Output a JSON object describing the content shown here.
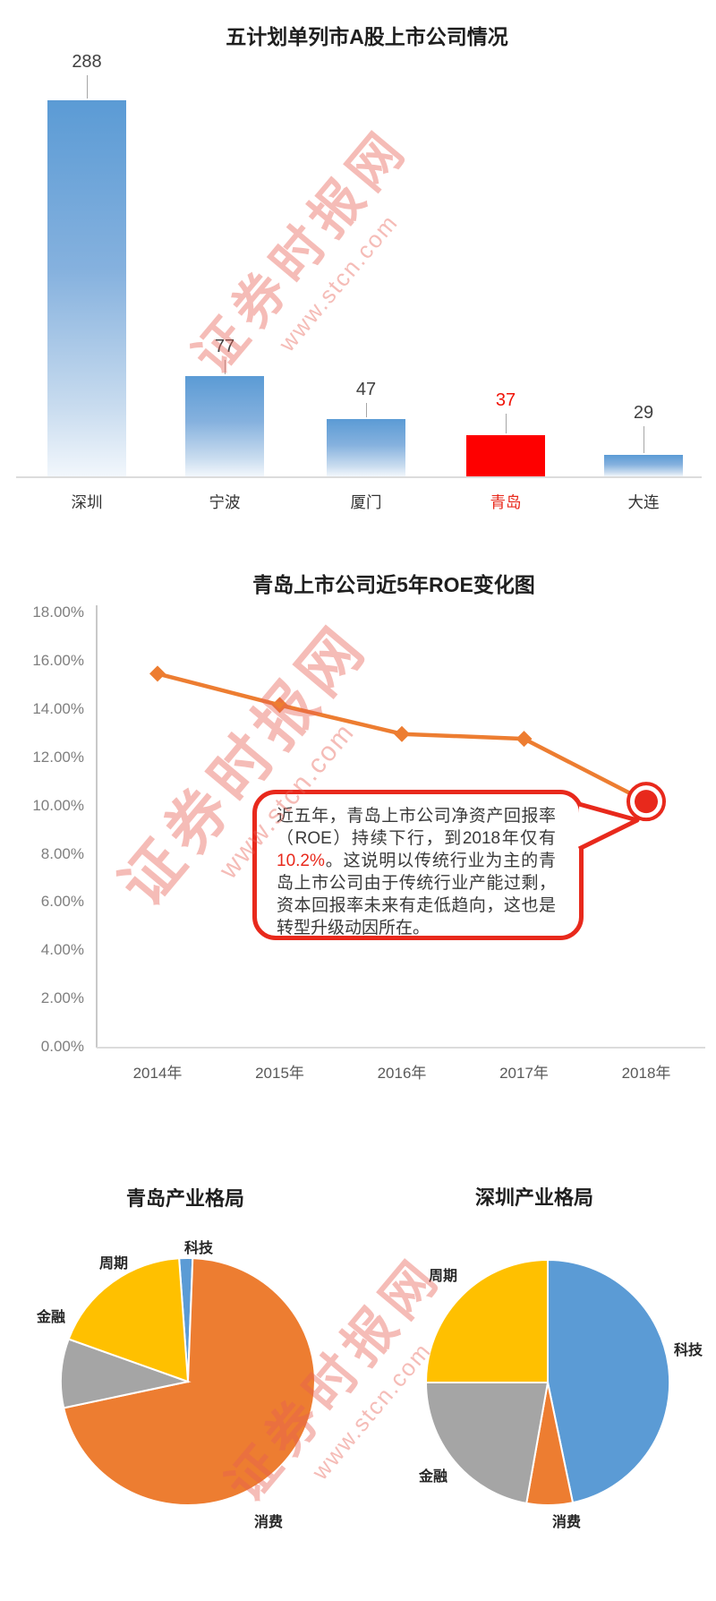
{
  "page": {
    "background": "#ffffff"
  },
  "watermark": {
    "brand": "证券时报网",
    "url": "www.stcn.com"
  },
  "chart_data": [
    {
      "id": "listed-companies-bar",
      "type": "bar",
      "title": "五计划单列市A股上市公司情况",
      "categories": [
        "深圳",
        "宁波",
        "厦门",
        "青岛",
        "大连"
      ],
      "values": [
        288,
        77,
        47,
        37,
        29
      ],
      "highlight_index": 3,
      "highlight_category": "青岛",
      "bar_color": "#5b9bd5",
      "highlight_color": "#fe0000",
      "ylim": [
        0,
        300
      ],
      "grid": false,
      "legend": false
    },
    {
      "id": "qingdao-roe-line",
      "type": "line",
      "title": "青岛上市公司近5年ROE变化图",
      "x": [
        "2014年",
        "2015年",
        "2016年",
        "2017年",
        "2018年"
      ],
      "series": [
        {
          "name": "ROE",
          "values_percent": [
            15.5,
            14.2,
            13.0,
            12.8,
            10.2
          ]
        }
      ],
      "y_ticks": [
        "18.00%",
        "16.00%",
        "14.00%",
        "12.00%",
        "10.00%",
        "8.00%",
        "6.00%",
        "4.00%",
        "2.00%",
        "0.00%"
      ],
      "ylim_percent": [
        0,
        18
      ],
      "line_color": "#ed7d31",
      "marker": "diamond",
      "grid": false,
      "legend": false,
      "annotation": {
        "highlight_x": "2018年",
        "highlight_value_percent": 10.2,
        "marker_color": "#e8291c",
        "text_before": "近五年，青岛上市公司净资产回报率（ROE）持续下行，到2018年仅有",
        "highlight_value": "10.2%",
        "text_after": "。这说明以传统行业为主的青岛上市公司由于传统行业产能过剩，资本回报率未来有走低趋向，这也是转型升级动因所在。"
      }
    },
    {
      "id": "qingdao-industry-pie",
      "type": "pie",
      "title": "青岛产业格局",
      "start_angle_deg_from_12": -4,
      "slices": [
        {
          "label": "科技",
          "percent": 1.7,
          "color": "#5b9bd5"
        },
        {
          "label": "消费",
          "percent": 71.0,
          "color": "#ed7d31"
        },
        {
          "label": "金融",
          "percent": 9.0,
          "color": "#a5a5a5"
        },
        {
          "label": "周期",
          "percent": 18.3,
          "color": "#ffc000"
        }
      ],
      "legend": false
    },
    {
      "id": "shenzhen-industry-pie",
      "type": "pie",
      "title": "深圳产业格局",
      "start_angle_deg_from_12": 0,
      "slices": [
        {
          "label": "科技",
          "percent": 46.7,
          "color": "#5b9bd5"
        },
        {
          "label": "消费",
          "percent": 6.1,
          "color": "#ed7d31"
        },
        {
          "label": "金融",
          "percent": 22.2,
          "color": "#a5a5a5"
        },
        {
          "label": "周期",
          "percent": 25.0,
          "color": "#ffc000"
        }
      ],
      "legend": false
    }
  ]
}
